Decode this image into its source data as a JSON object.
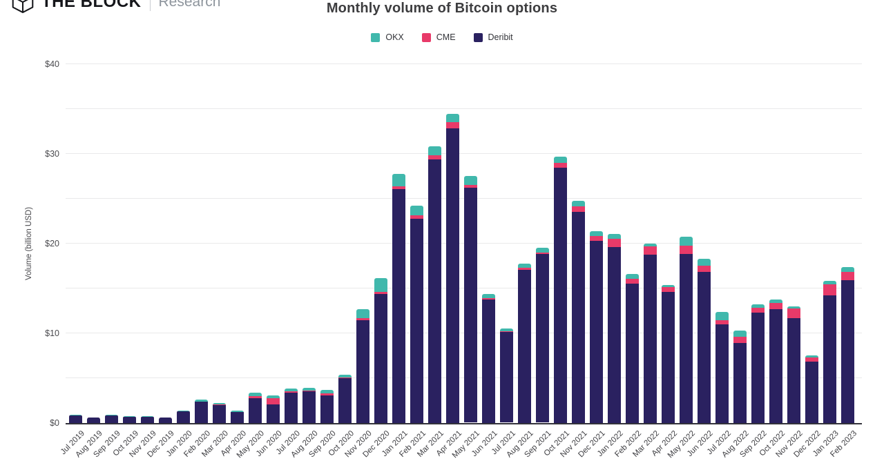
{
  "header": {
    "brand": "THE BLOCK",
    "brand_sub": "Research"
  },
  "chart_data": {
    "type": "bar",
    "stacked": true,
    "title": "Monthly volume of Bitcoin options",
    "xlabel": "",
    "ylabel": "Volume (billion USD)",
    "ylim": [
      0,
      40
    ],
    "grid": true,
    "gridline_step": 5,
    "legend_position": "top-center",
    "ytick_labels": [
      {
        "value": 0,
        "label": "$0"
      },
      {
        "value": 10,
        "label": "$10"
      },
      {
        "value": 20,
        "label": "$20"
      },
      {
        "value": 30,
        "label": "$30"
      },
      {
        "value": 40,
        "label": "$40"
      }
    ],
    "categories": [
      "Jul 2019",
      "Aug 2019",
      "Sep 2019",
      "Oct 2019",
      "Nov 2019",
      "Dec 2019",
      "Jan 2020",
      "Feb 2020",
      "Mar 2020",
      "Apr 2020",
      "May 2020",
      "Jun 2020",
      "Jul 2020",
      "Aug 2020",
      "Sep 2020",
      "Oct 2020",
      "Nov 2020",
      "Dec 2020",
      "Jan 2021",
      "Feb 2021",
      "Mar 2021",
      "Apr 2021",
      "May 2021",
      "Jun 2021",
      "Jul 2021",
      "Aug 2021",
      "Sep 2021",
      "Oct 2021",
      "Nov 2021",
      "Dec 2021",
      "Jan 2022",
      "Feb 2022",
      "Mar 2022",
      "Apr 2022",
      "May 2022",
      "Jun 2022",
      "Jul 2022",
      "Aug 2022",
      "Sep 2022",
      "Oct 2022",
      "Nov 2022",
      "Dec 2022",
      "Jan 2023",
      "Feb 2023"
    ],
    "stack_order_bottom_to_top": [
      "Deribit",
      "CME",
      "OKX"
    ],
    "series": [
      {
        "name": "OKX",
        "color": "#40b8ac",
        "values": [
          0.04,
          0.02,
          0.04,
          0.04,
          0.04,
          0.02,
          0.08,
          0.2,
          0.15,
          0.12,
          0.4,
          0.3,
          0.3,
          0.3,
          0.4,
          0.3,
          1.0,
          1.5,
          1.4,
          1.1,
          1.0,
          0.9,
          1.0,
          0.45,
          0.3,
          0.5,
          0.5,
          0.7,
          0.6,
          0.55,
          0.55,
          0.5,
          0.3,
          0.25,
          1.0,
          0.8,
          0.9,
          0.7,
          0.4,
          0.35,
          0.25,
          0.25,
          0.4,
          0.55
        ]
      },
      {
        "name": "CME",
        "color": "#e83a69",
        "values": [
          0.01,
          0.01,
          0.01,
          0.01,
          0.01,
          0.01,
          0.02,
          0.05,
          0.05,
          0.03,
          0.2,
          0.7,
          0.15,
          0.1,
          0.2,
          0.1,
          0.2,
          0.25,
          0.3,
          0.4,
          0.45,
          0.75,
          0.3,
          0.15,
          0.1,
          0.2,
          0.2,
          0.5,
          0.6,
          0.55,
          0.9,
          0.6,
          0.9,
          0.55,
          0.95,
          0.7,
          0.5,
          0.7,
          0.5,
          0.75,
          1.05,
          0.45,
          1.25,
          0.95
        ]
      },
      {
        "name": "Deribit",
        "color": "#2a2160",
        "values": [
          0.9,
          0.57,
          0.85,
          0.75,
          0.75,
          0.57,
          1.3,
          2.4,
          2.0,
          1.2,
          2.8,
          2.1,
          3.4,
          3.5,
          3.1,
          5.0,
          11.5,
          14.4,
          26.1,
          22.7,
          29.4,
          32.8,
          26.2,
          13.8,
          10.1,
          17.1,
          18.8,
          28.5,
          23.6,
          20.3,
          19.6,
          15.5,
          18.8,
          14.6,
          18.8,
          16.8,
          11.0,
          8.9,
          12.3,
          12.7,
          11.7,
          6.85,
          14.2,
          15.9
        ]
      }
    ]
  }
}
